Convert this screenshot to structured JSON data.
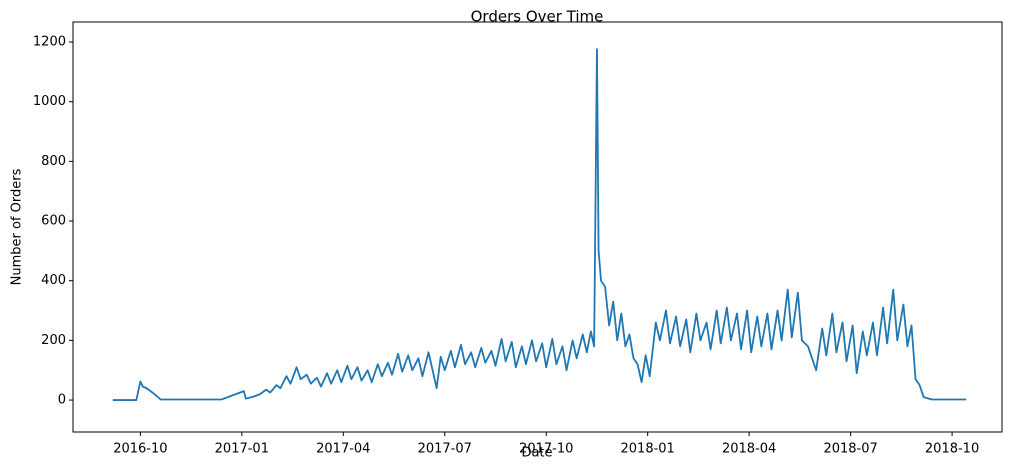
{
  "chart_data": {
    "type": "line",
    "title": "Orders Over Time",
    "xlabel": "Date",
    "ylabel": "Number of Orders",
    "color": "#1f77b4",
    "x": [
      2016.682,
      2016.74,
      2016.75,
      2016.756,
      2016.765,
      2016.78,
      2016.8,
      2016.95,
      2017.005,
      2017.01,
      2017.03,
      2017.045,
      2017.06,
      2017.07,
      2017.085,
      2017.095,
      2017.11,
      2017.12,
      2017.135,
      2017.145,
      2017.16,
      2017.17,
      2017.185,
      2017.195,
      2017.21,
      2017.22,
      2017.235,
      2017.245,
      2017.26,
      2017.27,
      2017.285,
      2017.295,
      2017.31,
      2017.32,
      2017.335,
      2017.345,
      2017.36,
      2017.37,
      2017.385,
      2017.395,
      2017.41,
      2017.42,
      2017.435,
      2017.445,
      2017.46,
      2017.47,
      2017.48,
      2017.49,
      2017.5,
      2017.515,
      2017.525,
      2017.54,
      2017.55,
      2017.565,
      2017.575,
      2017.59,
      2017.6,
      2017.615,
      2017.625,
      2017.64,
      2017.65,
      2017.665,
      2017.675,
      2017.69,
      2017.7,
      2017.715,
      2017.725,
      2017.74,
      2017.75,
      2017.765,
      2017.775,
      2017.79,
      2017.8,
      2017.815,
      2017.825,
      2017.84,
      2017.85,
      2017.86,
      2017.868,
      2017.875,
      2017.879,
      2017.885,
      2017.895,
      2017.905,
      2017.915,
      2017.925,
      2017.935,
      2017.945,
      2017.955,
      2017.965,
      2017.975,
      2017.985,
      2017.995,
      2018.005,
      2018.02,
      2018.03,
      2018.045,
      2018.055,
      2018.07,
      2018.08,
      2018.095,
      2018.105,
      2018.12,
      2018.13,
      2018.145,
      2018.155,
      2018.17,
      2018.18,
      2018.195,
      2018.205,
      2018.22,
      2018.23,
      2018.245,
      2018.255,
      2018.27,
      2018.28,
      2018.295,
      2018.305,
      2018.32,
      2018.33,
      2018.345,
      2018.355,
      2018.37,
      2018.38,
      2018.395,
      2018.405,
      2018.415,
      2018.43,
      2018.44,
      2018.455,
      2018.465,
      2018.48,
      2018.49,
      2018.505,
      2018.515,
      2018.53,
      2018.54,
      2018.555,
      2018.565,
      2018.58,
      2018.59,
      2018.605,
      2018.615,
      2018.63,
      2018.64,
      2018.65,
      2018.66,
      2018.67,
      2018.68,
      2018.7,
      2018.785
    ],
    "values": [
      0,
      0,
      62,
      45,
      40,
      25,
      2,
      2,
      30,
      5,
      12,
      20,
      35,
      25,
      50,
      40,
      80,
      55,
      110,
      70,
      85,
      55,
      75,
      45,
      90,
      55,
      100,
      60,
      115,
      70,
      110,
      65,
      100,
      60,
      120,
      80,
      125,
      85,
      155,
      95,
      150,
      100,
      140,
      80,
      160,
      100,
      40,
      145,
      100,
      165,
      110,
      185,
      120,
      160,
      110,
      175,
      125,
      165,
      115,
      205,
      130,
      195,
      110,
      180,
      120,
      200,
      130,
      190,
      110,
      205,
      120,
      180,
      100,
      200,
      140,
      220,
      160,
      230,
      180,
      1176,
      500,
      400,
      380,
      250,
      330,
      200,
      290,
      180,
      220,
      140,
      120,
      60,
      150,
      80,
      260,
      200,
      300,
      190,
      280,
      180,
      270,
      160,
      290,
      200,
      260,
      170,
      300,
      190,
      310,
      200,
      290,
      170,
      300,
      160,
      280,
      180,
      290,
      170,
      300,
      200,
      370,
      210,
      360,
      200,
      180,
      140,
      100,
      240,
      150,
      290,
      160,
      260,
      130,
      250,
      90,
      230,
      150,
      260,
      150,
      310,
      190,
      370,
      200,
      320,
      180,
      250,
      70,
      50,
      10,
      2,
      2
    ],
    "xlim": [
      2016.584,
      2018.873
    ],
    "ylim": [
      -107,
      1267
    ],
    "xticks": [
      {
        "value": 2016.75,
        "label": "2016-10"
      },
      {
        "value": 2017.0,
        "label": "2017-01"
      },
      {
        "value": 2017.25,
        "label": "2017-04"
      },
      {
        "value": 2017.5,
        "label": "2017-07"
      },
      {
        "value": 2017.75,
        "label": "2017-10"
      },
      {
        "value": 2018.0,
        "label": "2018-01"
      },
      {
        "value": 2018.25,
        "label": "2018-04"
      },
      {
        "value": 2018.5,
        "label": "2018-07"
      },
      {
        "value": 2018.75,
        "label": "2018-10"
      }
    ],
    "yticks": [
      0,
      200,
      400,
      600,
      800,
      1000,
      1200
    ]
  }
}
